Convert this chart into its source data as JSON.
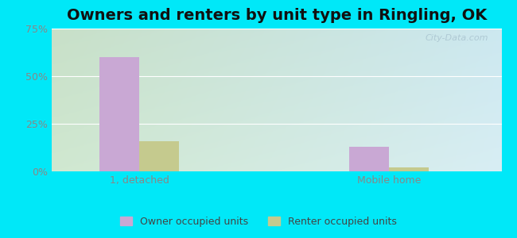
{
  "title": "Owners and renters by unit type in Ringling, OK",
  "categories": [
    "1, detached",
    "Mobile home"
  ],
  "owner_values": [
    60.0,
    13.0
  ],
  "renter_values": [
    16.0,
    2.0
  ],
  "owner_color": "#c9a8d4",
  "renter_color": "#c5ca8e",
  "bar_width": 0.32,
  "ylim": [
    0,
    75
  ],
  "yticks": [
    0,
    25,
    50,
    75
  ],
  "yticklabels": [
    "0%",
    "25%",
    "50%",
    "75%"
  ],
  "background_outer": "#00e8f8",
  "bg_topleft": "#d0e8d0",
  "bg_topright": "#d8eef4",
  "bg_bottomleft": "#c8e0c8",
  "bg_bottomright": "#cce8f0",
  "title_fontsize": 14,
  "legend_labels": [
    "Owner occupied units",
    "Renter occupied units"
  ],
  "watermark": "City-Data.com",
  "tick_color": "#888888",
  "grid_color": "#e8e8e8",
  "group_positions": [
    1.0,
    3.0
  ],
  "xlim": [
    0.3,
    3.9
  ]
}
